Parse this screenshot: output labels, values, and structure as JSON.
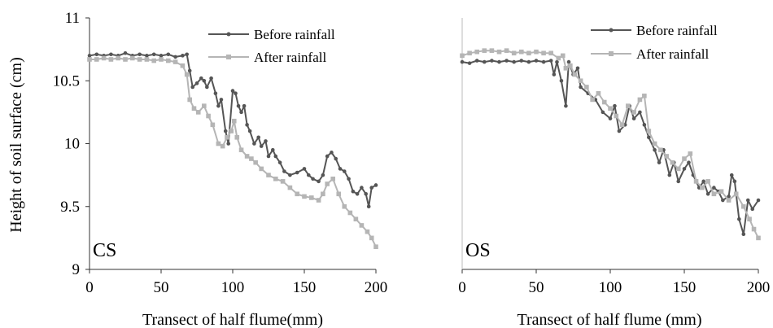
{
  "ylabel": "Height of soil surface (cm)",
  "series_names": [
    "Before rainfall",
    "After rainfall"
  ],
  "series_colors": [
    "#555555",
    "#b5b5b5"
  ],
  "chart_data": [
    {
      "type": "line",
      "panel_label": "CS",
      "xlabel": "Transect of half flume(mm)",
      "ylabel": "Height of soil surface (cm)",
      "xlim": [
        0,
        200
      ],
      "ylim": [
        9,
        11
      ],
      "xticks": [
        "0",
        "50",
        "100",
        "150",
        "200"
      ],
      "yticks": [
        "9",
        "9.5",
        "10",
        "10.5",
        "11"
      ],
      "legend": "top-right",
      "grid": false,
      "series": [
        {
          "name": "Before rainfall",
          "x": [
            0,
            5,
            10,
            15,
            20,
            25,
            30,
            35,
            40,
            45,
            50,
            55,
            60,
            65,
            68,
            70,
            72,
            75,
            78,
            80,
            82,
            85,
            88,
            90,
            92,
            95,
            97,
            100,
            102,
            104,
            106,
            108,
            110,
            112,
            115,
            118,
            120,
            123,
            125,
            128,
            130,
            133,
            136,
            140,
            145,
            150,
            153,
            156,
            160,
            163,
            166,
            169,
            172,
            175,
            178,
            181,
            184,
            187,
            190,
            193,
            195,
            197,
            200
          ],
          "y": [
            10.7,
            10.71,
            10.7,
            10.71,
            10.7,
            10.72,
            10.7,
            10.71,
            10.7,
            10.71,
            10.7,
            10.71,
            10.69,
            10.7,
            10.71,
            10.58,
            10.45,
            10.48,
            10.52,
            10.5,
            10.45,
            10.52,
            10.4,
            10.3,
            10.35,
            10.1,
            10.0,
            10.42,
            10.4,
            10.3,
            10.25,
            10.3,
            10.15,
            10.1,
            10.0,
            10.05,
            9.98,
            10.02,
            9.9,
            9.95,
            9.9,
            9.85,
            9.78,
            9.75,
            9.77,
            9.8,
            9.75,
            9.72,
            9.7,
            9.75,
            9.9,
            9.93,
            9.88,
            9.8,
            9.78,
            9.72,
            9.62,
            9.6,
            9.65,
            9.6,
            9.5,
            9.65,
            9.67
          ]
        },
        {
          "name": "After rainfall",
          "x": [
            0,
            5,
            10,
            15,
            20,
            25,
            30,
            35,
            40,
            45,
            50,
            55,
            60,
            65,
            68,
            70,
            73,
            76,
            80,
            83,
            86,
            90,
            93,
            96,
            99,
            101,
            103,
            106,
            110,
            113,
            116,
            120,
            125,
            130,
            135,
            140,
            145,
            150,
            155,
            160,
            163,
            166,
            170,
            174,
            178,
            182,
            186,
            190,
            194,
            197,
            200
          ],
          "y": [
            10.67,
            10.67,
            10.68,
            10.67,
            10.68,
            10.67,
            10.68,
            10.67,
            10.67,
            10.66,
            10.67,
            10.66,
            10.65,
            10.62,
            10.55,
            10.35,
            10.28,
            10.25,
            10.3,
            10.22,
            10.15,
            10.0,
            9.98,
            10.05,
            10.1,
            10.18,
            10.05,
            9.95,
            9.9,
            9.88,
            9.85,
            9.8,
            9.75,
            9.72,
            9.7,
            9.65,
            9.6,
            9.58,
            9.57,
            9.55,
            9.6,
            9.68,
            9.72,
            9.6,
            9.5,
            9.45,
            9.4,
            9.35,
            9.3,
            9.25,
            9.18
          ]
        }
      ]
    },
    {
      "type": "line",
      "panel_label": "OS",
      "xlabel": "Transect of half flume (mm)",
      "ylabel": "",
      "xlim": [
        0,
        200
      ],
      "ylim": [
        9,
        11
      ],
      "xticks": [
        "0",
        "50",
        "100",
        "150",
        "200"
      ],
      "yticks": [],
      "legend": "top-right",
      "grid": false,
      "series": [
        {
          "name": "Before rainfall",
          "x": [
            0,
            5,
            10,
            15,
            20,
            25,
            30,
            35,
            40,
            45,
            50,
            55,
            60,
            62,
            64,
            67,
            70,
            72,
            75,
            78,
            80,
            85,
            90,
            95,
            100,
            103,
            106,
            110,
            113,
            116,
            120,
            123,
            126,
            130,
            133,
            136,
            140,
            143,
            146,
            150,
            153,
            156,
            160,
            163,
            166,
            170,
            173,
            176,
            180,
            182,
            184,
            187,
            190,
            193,
            196,
            200
          ],
          "y": [
            10.65,
            10.64,
            10.66,
            10.65,
            10.66,
            10.65,
            10.66,
            10.65,
            10.66,
            10.65,
            10.66,
            10.65,
            10.66,
            10.55,
            10.65,
            10.5,
            10.3,
            10.65,
            10.55,
            10.6,
            10.45,
            10.4,
            10.35,
            10.25,
            10.2,
            10.3,
            10.1,
            10.15,
            10.3,
            10.2,
            10.25,
            10.15,
            10.05,
            9.95,
            9.85,
            9.95,
            9.75,
            9.85,
            9.7,
            9.8,
            9.85,
            9.75,
            9.65,
            9.7,
            9.6,
            9.65,
            9.62,
            9.55,
            9.58,
            9.75,
            9.7,
            9.4,
            9.28,
            9.55,
            9.48,
            9.55
          ]
        },
        {
          "name": "After rainfall",
          "x": [
            0,
            5,
            10,
            15,
            20,
            25,
            30,
            35,
            40,
            45,
            50,
            55,
            60,
            65,
            68,
            70,
            73,
            76,
            80,
            84,
            88,
            92,
            96,
            100,
            104,
            108,
            112,
            116,
            120,
            123,
            126,
            130,
            134,
            138,
            142,
            146,
            150,
            154,
            158,
            162,
            166,
            170,
            175,
            180,
            185,
            190,
            194,
            197,
            200
          ],
          "y": [
            10.7,
            10.72,
            10.73,
            10.74,
            10.74,
            10.73,
            10.74,
            10.72,
            10.73,
            10.72,
            10.73,
            10.72,
            10.72,
            10.68,
            10.7,
            10.6,
            10.62,
            10.55,
            10.5,
            10.45,
            10.35,
            10.4,
            10.33,
            10.28,
            10.22,
            10.15,
            10.3,
            10.25,
            10.35,
            10.38,
            10.1,
            10.0,
            9.95,
            9.9,
            9.85,
            9.8,
            9.88,
            9.92,
            9.7,
            9.65,
            9.7,
            9.6,
            9.62,
            9.55,
            9.6,
            9.5,
            9.4,
            9.32,
            9.25
          ]
        }
      ]
    }
  ]
}
